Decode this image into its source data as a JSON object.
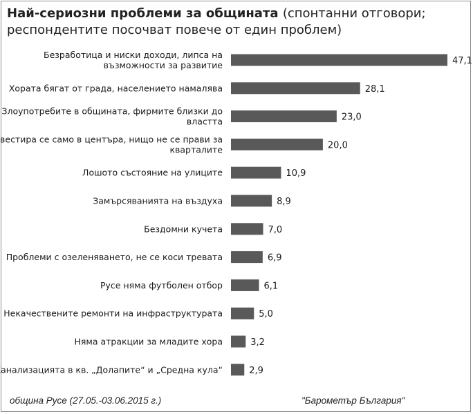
{
  "chart_data": {
    "type": "bar",
    "orientation": "horizontal",
    "title": "Най-сериозни проблеми за общината",
    "subtitle": "(спонтанни отговори; респондентите посочват повече от един проблем)",
    "categories": [
      "Безработица и ниски доходи, липса на възможности за развитие",
      "Хората бягат от града, населението намалява",
      "Злоупотребите в общината, фирмите близки до властта",
      "Инвестира се само в центъра, нищо не се прави за кварталите",
      "Лошото състояние на улиците",
      "Замърсяванията на въздуха",
      "Бездомни кучета",
      "Проблеми с озеленяването, не се коси тревата",
      "Русе няма футболен отбор",
      "Некачествените ремонти на инфраструктурата",
      "Няма атракции за младите хора",
      "Канализацията в кв. „Долапите“ и „Средна кула“"
    ],
    "category_lines": [
      [
        "Безработица и ниски доходи, липса на",
        "възможности за развитие"
      ],
      [
        "Хората бягат от града, населението намалява"
      ],
      [
        "Злоупотребите в общината, фирмите близки до",
        "властта"
      ],
      [
        "Инвестира се само в центъра, нищо не се прави за",
        "кварталите"
      ],
      [
        "Лошото състояние на улиците"
      ],
      [
        "Замърсяванията на въздуха"
      ],
      [
        "Бездомни кучета"
      ],
      [
        "Проблеми с озеленяването, не се коси тревата"
      ],
      [
        "Русе няма футболен отбор"
      ],
      [
        "Некачествените ремонти на инфраструктурата"
      ],
      [
        "Няма атракции за младите хора"
      ],
      [
        "Канализацията в кв. „Долапите“ и „Средна кула“"
      ]
    ],
    "values": [
      47.1,
      28.1,
      23.0,
      20.0,
      10.9,
      8.9,
      7.0,
      6.9,
      6.1,
      5.0,
      3.2,
      2.9
    ],
    "value_labels": [
      "47,1",
      "28,1",
      "23,0",
      "20,0",
      "10,9",
      "8,9",
      "7,0",
      "6,9",
      "6,1",
      "5,0",
      "3,2",
      "2,9"
    ],
    "xlim": [
      0,
      47.1
    ],
    "bar_color": "#595959",
    "grid": false,
    "legend": "none"
  },
  "footer": {
    "left": "община Русе (27.05.-03.06.2015 г.)",
    "right": "\"Барометър България\""
  }
}
